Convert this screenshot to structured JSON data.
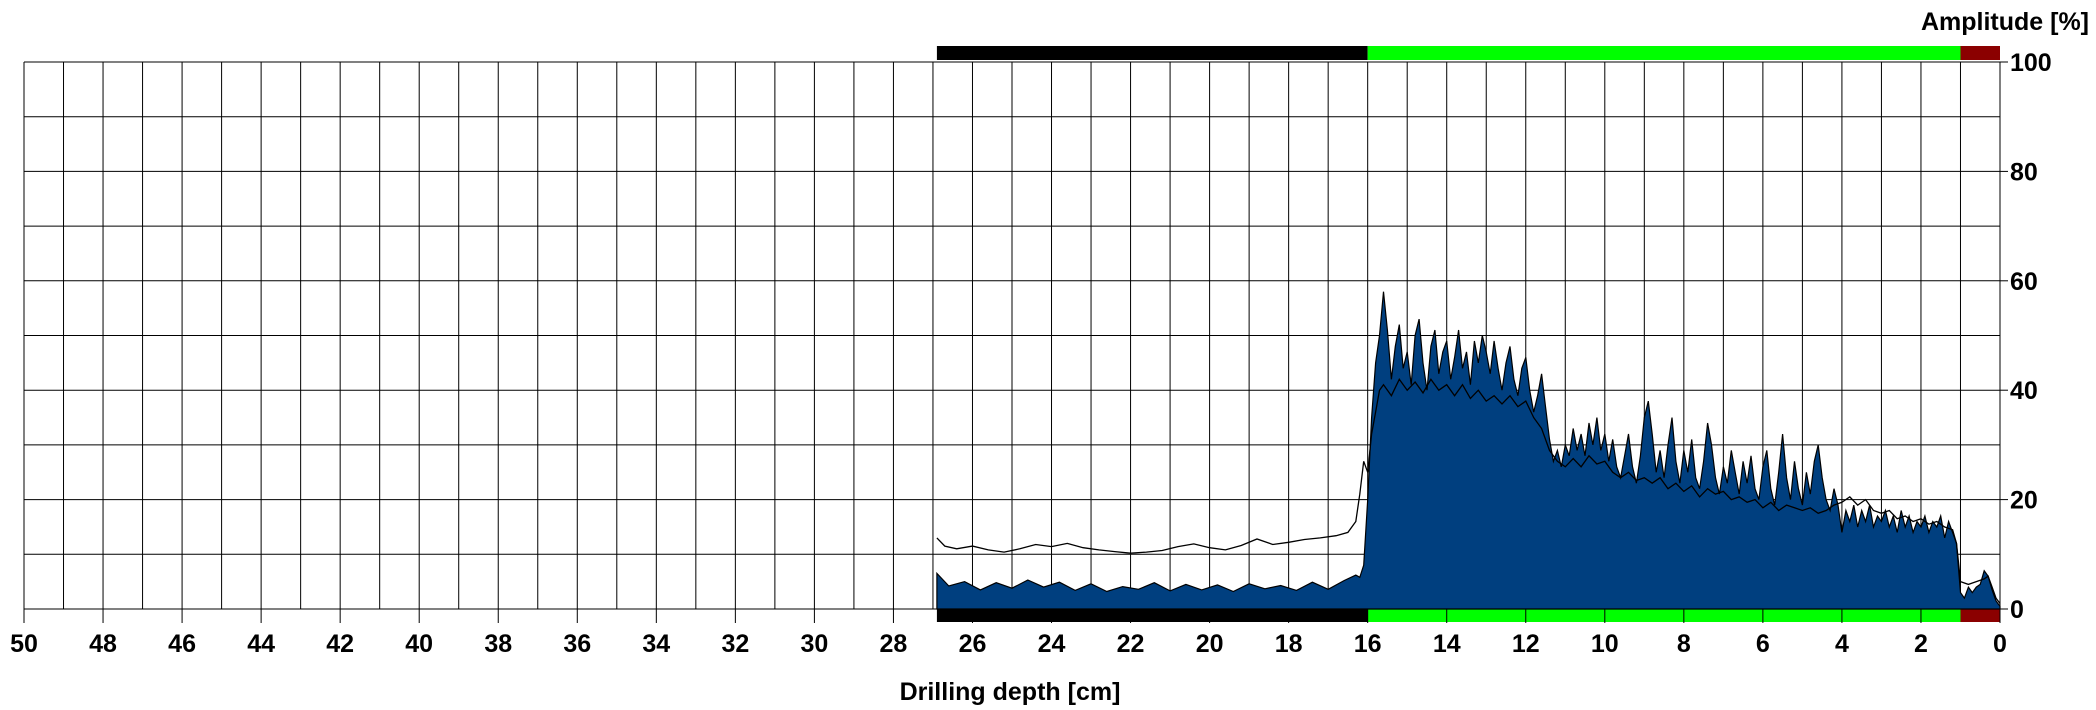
{
  "chart_data": {
    "type": "area",
    "title": "",
    "xlabel": "Drilling depth [cm]",
    "ylabel": "Amplitude [%]",
    "x_reversed": true,
    "xlim": [
      50,
      0
    ],
    "ylim": [
      0,
      100
    ],
    "x_ticks": [
      50,
      48,
      46,
      44,
      42,
      40,
      38,
      36,
      34,
      32,
      30,
      28,
      26,
      24,
      22,
      20,
      18,
      16,
      14,
      12,
      10,
      8,
      6,
      4,
      2,
      0
    ],
    "y_ticks": [
      0,
      20,
      40,
      60,
      80,
      100
    ],
    "grid": true,
    "colors": {
      "area_fill": "#003f7f",
      "line": "#000000",
      "grid": "#000000",
      "band_black": "#000000",
      "band_green": "#00ff00",
      "band_red": "#8b0000"
    },
    "bands": [
      {
        "from": 26.9,
        "to": 16.0,
        "color": "#000000"
      },
      {
        "from": 16.0,
        "to": 1.0,
        "color": "#00ff00"
      },
      {
        "from": 1.0,
        "to": 0.0,
        "color": "#8b0000"
      }
    ],
    "series": [
      {
        "kind": "area",
        "points": [
          [
            26.9,
            6.5
          ],
          [
            26.6,
            4.2
          ],
          [
            26.2,
            5.0
          ],
          [
            25.8,
            3.5
          ],
          [
            25.4,
            4.8
          ],
          [
            25.0,
            3.8
          ],
          [
            24.6,
            5.3
          ],
          [
            24.2,
            4.0
          ],
          [
            23.8,
            4.9
          ],
          [
            23.4,
            3.4
          ],
          [
            23.0,
            4.6
          ],
          [
            22.6,
            3.2
          ],
          [
            22.2,
            4.1
          ],
          [
            21.8,
            3.6
          ],
          [
            21.4,
            4.8
          ],
          [
            21.0,
            3.3
          ],
          [
            20.6,
            4.5
          ],
          [
            20.2,
            3.5
          ],
          [
            19.8,
            4.4
          ],
          [
            19.4,
            3.2
          ],
          [
            19.0,
            4.6
          ],
          [
            18.6,
            3.7
          ],
          [
            18.2,
            4.3
          ],
          [
            17.8,
            3.4
          ],
          [
            17.4,
            4.9
          ],
          [
            17.0,
            3.6
          ],
          [
            16.6,
            5.2
          ],
          [
            16.3,
            6.2
          ],
          [
            16.2,
            5.8
          ],
          [
            16.1,
            8.0
          ],
          [
            16.0,
            20.0
          ],
          [
            15.9,
            35.0
          ],
          [
            15.8,
            45.0
          ],
          [
            15.7,
            50.0
          ],
          [
            15.6,
            58.0
          ],
          [
            15.5,
            51.0
          ],
          [
            15.4,
            42.0
          ],
          [
            15.3,
            48.0
          ],
          [
            15.2,
            52.0
          ],
          [
            15.1,
            44.0
          ],
          [
            15.0,
            47.0
          ],
          [
            14.9,
            41.0
          ],
          [
            14.8,
            50.0
          ],
          [
            14.7,
            53.0
          ],
          [
            14.6,
            45.0
          ],
          [
            14.5,
            40.0
          ],
          [
            14.4,
            48.0
          ],
          [
            14.3,
            51.0
          ],
          [
            14.2,
            43.0
          ],
          [
            14.1,
            47.0
          ],
          [
            14.0,
            49.0
          ],
          [
            13.9,
            42.0
          ],
          [
            13.8,
            46.0
          ],
          [
            13.7,
            51.0
          ],
          [
            13.6,
            44.0
          ],
          [
            13.5,
            47.0
          ],
          [
            13.4,
            41.0
          ],
          [
            13.3,
            49.0
          ],
          [
            13.2,
            45.0
          ],
          [
            13.1,
            50.0
          ],
          [
            13.0,
            47.0
          ],
          [
            12.9,
            43.0
          ],
          [
            12.8,
            49.0
          ],
          [
            12.7,
            44.0
          ],
          [
            12.6,
            40.0
          ],
          [
            12.5,
            45.0
          ],
          [
            12.4,
            48.0
          ],
          [
            12.3,
            42.0
          ],
          [
            12.2,
            39.0
          ],
          [
            12.1,
            44.0
          ],
          [
            12.0,
            46.0
          ],
          [
            11.9,
            40.0
          ],
          [
            11.8,
            36.0
          ],
          [
            11.7,
            39.0
          ],
          [
            11.6,
            43.0
          ],
          [
            11.5,
            37.0
          ],
          [
            11.4,
            31.0
          ],
          [
            11.3,
            27.0
          ],
          [
            11.2,
            29.0
          ],
          [
            11.1,
            26.0
          ],
          [
            11.0,
            30.0
          ],
          [
            10.9,
            28.0
          ],
          [
            10.8,
            33.0
          ],
          [
            10.7,
            29.0
          ],
          [
            10.6,
            32.0
          ],
          [
            10.5,
            28.0
          ],
          [
            10.4,
            34.0
          ],
          [
            10.3,
            30.0
          ],
          [
            10.2,
            35.0
          ],
          [
            10.1,
            29.0
          ],
          [
            10.0,
            32.0
          ],
          [
            9.9,
            27.0
          ],
          [
            9.8,
            31.0
          ],
          [
            9.7,
            26.0
          ],
          [
            9.6,
            24.0
          ],
          [
            9.5,
            28.0
          ],
          [
            9.4,
            32.0
          ],
          [
            9.3,
            26.0
          ],
          [
            9.2,
            23.0
          ],
          [
            9.1,
            28.0
          ],
          [
            9.0,
            35.0
          ],
          [
            8.9,
            38.0
          ],
          [
            8.8,
            32.0
          ],
          [
            8.7,
            25.0
          ],
          [
            8.6,
            29.0
          ],
          [
            8.5,
            24.0
          ],
          [
            8.4,
            30.0
          ],
          [
            8.3,
            35.0
          ],
          [
            8.2,
            27.0
          ],
          [
            8.1,
            23.0
          ],
          [
            8.0,
            29.0
          ],
          [
            7.9,
            25.0
          ],
          [
            7.8,
            31.0
          ],
          [
            7.7,
            24.0
          ],
          [
            7.6,
            22.0
          ],
          [
            7.5,
            27.0
          ],
          [
            7.4,
            34.0
          ],
          [
            7.3,
            30.0
          ],
          [
            7.2,
            24.0
          ],
          [
            7.1,
            21.0
          ],
          [
            7.0,
            26.0
          ],
          [
            6.9,
            23.0
          ],
          [
            6.8,
            29.0
          ],
          [
            6.7,
            25.0
          ],
          [
            6.6,
            21.0
          ],
          [
            6.5,
            27.0
          ],
          [
            6.4,
            23.0
          ],
          [
            6.3,
            28.0
          ],
          [
            6.2,
            22.0
          ],
          [
            6.1,
            20.0
          ],
          [
            6.0,
            26.0
          ],
          [
            5.9,
            29.0
          ],
          [
            5.8,
            22.0
          ],
          [
            5.7,
            19.0
          ],
          [
            5.6,
            25.0
          ],
          [
            5.5,
            32.0
          ],
          [
            5.4,
            24.0
          ],
          [
            5.3,
            20.0
          ],
          [
            5.2,
            27.0
          ],
          [
            5.1,
            22.0
          ],
          [
            5.0,
            19.0
          ],
          [
            4.9,
            25.0
          ],
          [
            4.8,
            21.0
          ],
          [
            4.7,
            27.0
          ],
          [
            4.6,
            30.0
          ],
          [
            4.5,
            24.0
          ],
          [
            4.4,
            20.0
          ],
          [
            4.3,
            18.0
          ],
          [
            4.2,
            22.0
          ],
          [
            4.1,
            19.0
          ],
          [
            4.0,
            14.0
          ],
          [
            3.9,
            18.0
          ],
          [
            3.8,
            16.0
          ],
          [
            3.7,
            19.0
          ],
          [
            3.6,
            15.0
          ],
          [
            3.5,
            18.0
          ],
          [
            3.4,
            16.0
          ],
          [
            3.3,
            19.0
          ],
          [
            3.2,
            15.0
          ],
          [
            3.1,
            17.0
          ],
          [
            3.0,
            16.0
          ],
          [
            2.9,
            18.0
          ],
          [
            2.8,
            15.0
          ],
          [
            2.7,
            17.0
          ],
          [
            2.6,
            14.0
          ],
          [
            2.5,
            18.0
          ],
          [
            2.4,
            15.0
          ],
          [
            2.3,
            17.0
          ],
          [
            2.2,
            14.0
          ],
          [
            2.1,
            16.0
          ],
          [
            2.0,
            15.0
          ],
          [
            1.9,
            17.0
          ],
          [
            1.8,
            14.0
          ],
          [
            1.7,
            16.0
          ],
          [
            1.6,
            15.0
          ],
          [
            1.5,
            17.0
          ],
          [
            1.4,
            13.0
          ],
          [
            1.3,
            16.0
          ],
          [
            1.2,
            14.0
          ],
          [
            1.1,
            12.0
          ],
          [
            1.0,
            3.0
          ],
          [
            0.9,
            2.0
          ],
          [
            0.8,
            4.0
          ],
          [
            0.7,
            3.0
          ],
          [
            0.6,
            4.0
          ],
          [
            0.5,
            4.5
          ],
          [
            0.4,
            7.0
          ],
          [
            0.3,
            6.0
          ],
          [
            0.2,
            3.5
          ],
          [
            0.1,
            1.5
          ],
          [
            0.0,
            0.5
          ]
        ]
      },
      {
        "kind": "line",
        "points": [
          [
            26.9,
            13.0
          ],
          [
            26.7,
            11.5
          ],
          [
            26.4,
            11.0
          ],
          [
            26.0,
            11.5
          ],
          [
            25.6,
            10.8
          ],
          [
            25.2,
            10.4
          ],
          [
            24.8,
            11.0
          ],
          [
            24.4,
            11.8
          ],
          [
            24.0,
            11.4
          ],
          [
            23.6,
            12.0
          ],
          [
            23.2,
            11.2
          ],
          [
            22.8,
            10.8
          ],
          [
            22.4,
            10.5
          ],
          [
            22.0,
            10.2
          ],
          [
            21.6,
            10.4
          ],
          [
            21.2,
            10.7
          ],
          [
            20.8,
            11.4
          ],
          [
            20.4,
            11.9
          ],
          [
            20.0,
            11.2
          ],
          [
            19.6,
            10.8
          ],
          [
            19.2,
            11.6
          ],
          [
            18.8,
            12.8
          ],
          [
            18.4,
            11.8
          ],
          [
            18.0,
            12.2
          ],
          [
            17.6,
            12.7
          ],
          [
            17.2,
            13.0
          ],
          [
            16.8,
            13.4
          ],
          [
            16.5,
            14.0
          ],
          [
            16.3,
            16.0
          ],
          [
            16.2,
            21.0
          ],
          [
            16.1,
            27.0
          ],
          [
            16.0,
            25.0
          ],
          [
            15.9,
            32.0
          ],
          [
            15.8,
            36.0
          ],
          [
            15.7,
            40.0
          ],
          [
            15.6,
            41.0
          ],
          [
            15.4,
            39.0
          ],
          [
            15.2,
            42.0
          ],
          [
            15.0,
            40.0
          ],
          [
            14.8,
            41.5
          ],
          [
            14.6,
            39.5
          ],
          [
            14.4,
            42.0
          ],
          [
            14.2,
            40.0
          ],
          [
            14.0,
            41.0
          ],
          [
            13.8,
            39.0
          ],
          [
            13.6,
            41.0
          ],
          [
            13.4,
            38.5
          ],
          [
            13.2,
            40.0
          ],
          [
            13.0,
            38.0
          ],
          [
            12.8,
            39.0
          ],
          [
            12.6,
            37.5
          ],
          [
            12.4,
            39.0
          ],
          [
            12.2,
            37.0
          ],
          [
            12.0,
            38.0
          ],
          [
            11.8,
            35.0
          ],
          [
            11.6,
            33.0
          ],
          [
            11.4,
            29.0
          ],
          [
            11.2,
            27.0
          ],
          [
            11.0,
            26.0
          ],
          [
            10.8,
            27.5
          ],
          [
            10.6,
            26.0
          ],
          [
            10.4,
            28.0
          ],
          [
            10.2,
            26.5
          ],
          [
            10.0,
            27.0
          ],
          [
            9.8,
            25.0
          ],
          [
            9.6,
            24.0
          ],
          [
            9.4,
            25.0
          ],
          [
            9.2,
            23.5
          ],
          [
            9.0,
            24.0
          ],
          [
            8.8,
            23.0
          ],
          [
            8.6,
            24.0
          ],
          [
            8.4,
            22.0
          ],
          [
            8.2,
            23.0
          ],
          [
            8.0,
            21.5
          ],
          [
            7.8,
            22.5
          ],
          [
            7.6,
            20.5
          ],
          [
            7.4,
            22.0
          ],
          [
            7.2,
            21.0
          ],
          [
            7.0,
            21.5
          ],
          [
            6.8,
            20.0
          ],
          [
            6.6,
            20.5
          ],
          [
            6.4,
            19.5
          ],
          [
            6.2,
            20.0
          ],
          [
            6.0,
            18.5
          ],
          [
            5.8,
            19.5
          ],
          [
            5.6,
            18.0
          ],
          [
            5.4,
            19.0
          ],
          [
            5.2,
            18.5
          ],
          [
            5.0,
            18.0
          ],
          [
            4.8,
            18.5
          ],
          [
            4.6,
            17.5
          ],
          [
            4.4,
            18.0
          ],
          [
            4.2,
            19.0
          ],
          [
            4.0,
            19.5
          ],
          [
            3.8,
            20.5
          ],
          [
            3.6,
            19.0
          ],
          [
            3.4,
            20.0
          ],
          [
            3.2,
            18.0
          ],
          [
            3.0,
            17.5
          ],
          [
            2.8,
            18.0
          ],
          [
            2.6,
            16.5
          ],
          [
            2.4,
            17.0
          ],
          [
            2.2,
            16.0
          ],
          [
            2.0,
            16.5
          ],
          [
            1.8,
            15.5
          ],
          [
            1.6,
            16.0
          ],
          [
            1.4,
            15.0
          ],
          [
            1.2,
            14.5
          ],
          [
            1.1,
            12.0
          ],
          [
            1.0,
            5.0
          ],
          [
            0.8,
            4.5
          ],
          [
            0.6,
            5.0
          ],
          [
            0.4,
            5.5
          ],
          [
            0.3,
            6.0
          ],
          [
            0.2,
            4.0
          ],
          [
            0.1,
            2.0
          ],
          [
            0.0,
            1.0
          ]
        ]
      }
    ]
  }
}
